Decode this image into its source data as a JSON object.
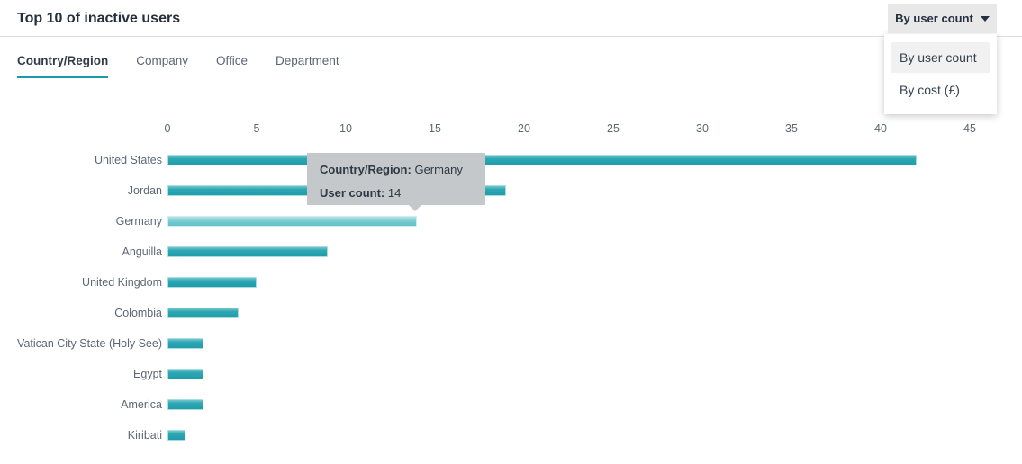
{
  "header": {
    "title": "Top 10 of inactive users",
    "dropdown": {
      "selected_label": "By user count",
      "options": [
        "By user count",
        "By cost (£)"
      ],
      "highlighted_option_index": 0
    }
  },
  "tabs": [
    {
      "label": "Country/Region",
      "active": true
    },
    {
      "label": "Company",
      "active": false
    },
    {
      "label": "Office",
      "active": false
    },
    {
      "label": "Department",
      "active": false
    }
  ],
  "chart_data": {
    "type": "bar",
    "orientation": "horizontal",
    "title": "Top 10 of inactive users",
    "xlabel": "User count",
    "ylabel": "Country/Region",
    "categories": [
      "United States",
      "Jordan",
      "Germany",
      "Anguilla",
      "United Kingdom",
      "Colombia",
      "Vatican City State (Holy See)",
      "Egypt",
      "America",
      "Kiribati"
    ],
    "values": [
      42,
      19,
      14,
      9,
      5,
      4,
      2,
      2,
      2,
      1
    ],
    "xlim": [
      0,
      45
    ],
    "ticks": [
      0,
      5,
      10,
      15,
      20,
      25,
      30,
      35,
      40,
      45
    ],
    "axis_position": "top",
    "grid": false,
    "legend": false,
    "highlighted_category": "Germany",
    "bar_color": "#2ea7b3",
    "bar_highlight_color": "#74c8cf"
  },
  "tooltip": {
    "line1_label": "Country/Region:",
    "line1_value": "Germany",
    "line2_label": "User count:",
    "line2_value": "14"
  },
  "colors": {
    "accent_teal": "#1b9aa8",
    "title_text": "#232f3a",
    "label_text": "#5c6873",
    "tooltip_bg": "#c4c8cb",
    "dropdown_button_bg": "#e8e8e8"
  }
}
